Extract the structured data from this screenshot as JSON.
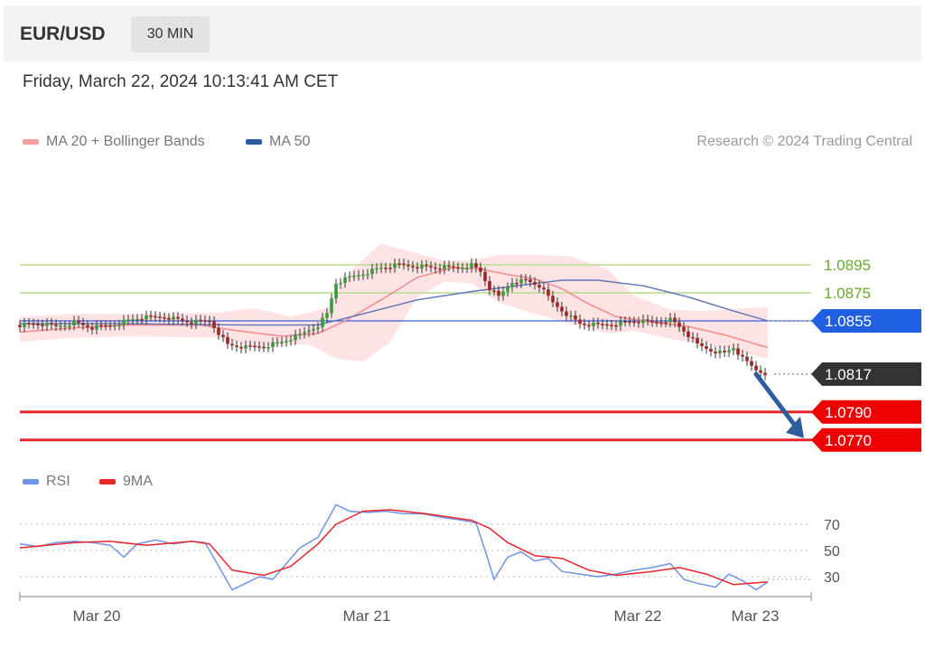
{
  "header": {
    "pair": "EUR/USD",
    "timeframe": "30 MIN",
    "timestamp": "Friday, March 22, 2024 10:13:41 AM CET"
  },
  "legend": {
    "ma20_label": "MA 20 + Bollinger Bands",
    "ma50_label": "MA 50",
    "credit": "Research © 2024 Trading Central",
    "rsi_label": "RSI",
    "rsi_ma_label": "9MA"
  },
  "colors": {
    "ma20": "#f28b8b",
    "bollinger_fill": "#fde0e0",
    "ma50": "#5d76b8",
    "support_line": "#e8262b",
    "resistance_line": "#b8dc8c",
    "pivot_line": "#3b5fd6",
    "candle_up": "#3a9b3a",
    "candle_down": "#a02525",
    "arrow": "#2d5d9e",
    "rsi": "#6f93e6",
    "rsi_ma": "#e8262b"
  },
  "chart_data": [
    {
      "type": "line",
      "instrument": "EUR/USD",
      "interval": "30 MIN",
      "price_range": [
        1.076,
        1.092
      ],
      "x_labels": [
        "Mar 20",
        "Mar 21",
        "Mar 22",
        "Mar 23"
      ],
      "price_path": [
        [
          0,
          1.0852
        ],
        [
          20,
          1.0853
        ],
        [
          40,
          1.0851
        ],
        [
          60,
          1.0854
        ],
        [
          80,
          1.085
        ],
        [
          100,
          1.0852
        ],
        [
          130,
          1.0857
        ],
        [
          160,
          1.0858
        ],
        [
          190,
          1.0854
        ],
        [
          210,
          1.0855
        ],
        [
          230,
          1.0838
        ],
        [
          250,
          1.0836
        ],
        [
          270,
          1.0837
        ],
        [
          290,
          1.084
        ],
        [
          310,
          1.0845
        ],
        [
          330,
          1.0852
        ],
        [
          340,
          1.086
        ],
        [
          350,
          1.0882
        ],
        [
          365,
          1.0886
        ],
        [
          385,
          1.089
        ],
        [
          400,
          1.0893
        ],
        [
          420,
          1.0895
        ],
        [
          440,
          1.0894
        ],
        [
          460,
          1.0893
        ],
        [
          485,
          1.0893
        ],
        [
          500,
          1.0895
        ],
        [
          510,
          1.089
        ],
        [
          520,
          1.0878
        ],
        [
          530,
          1.0872
        ],
        [
          545,
          1.0883
        ],
        [
          560,
          1.0884
        ],
        [
          575,
          1.088
        ],
        [
          590,
          1.0868
        ],
        [
          605,
          1.086
        ],
        [
          620,
          1.0853
        ],
        [
          640,
          1.0852
        ],
        [
          660,
          1.0853
        ],
        [
          680,
          1.0855
        ],
        [
          700,
          1.0854
        ],
        [
          720,
          1.0856
        ],
        [
          735,
          1.0848
        ],
        [
          750,
          1.0838
        ],
        [
          765,
          1.0834
        ],
        [
          780,
          1.0832
        ],
        [
          790,
          1.0836
        ],
        [
          800,
          1.0828
        ],
        [
          815,
          1.082
        ],
        [
          828,
          1.0817
        ]
      ],
      "ma20": [
        [
          0,
          1.0847
        ],
        [
          60,
          1.085
        ],
        [
          120,
          1.0852
        ],
        [
          200,
          1.0852
        ],
        [
          240,
          1.0848
        ],
        [
          290,
          1.0844
        ],
        [
          330,
          1.0846
        ],
        [
          360,
          1.0855
        ],
        [
          400,
          1.087
        ],
        [
          440,
          1.0886
        ],
        [
          480,
          1.0893
        ],
        [
          510,
          1.0892
        ],
        [
          540,
          1.0888
        ],
        [
          570,
          1.0885
        ],
        [
          600,
          1.0878
        ],
        [
          630,
          1.0867
        ],
        [
          660,
          1.0858
        ],
        [
          700,
          1.0854
        ],
        [
          740,
          1.0851
        ],
        [
          780,
          1.0845
        ],
        [
          828,
          1.0836
        ]
      ],
      "bollinger_upper": [
        [
          0,
          1.0858
        ],
        [
          60,
          1.086
        ],
        [
          120,
          1.086
        ],
        [
          220,
          1.0861
        ],
        [
          260,
          1.0864
        ],
        [
          300,
          1.0858
        ],
        [
          340,
          1.0864
        ],
        [
          370,
          1.0893
        ],
        [
          400,
          1.091
        ],
        [
          430,
          1.0905
        ],
        [
          470,
          1.0898
        ],
        [
          500,
          1.0898
        ],
        [
          530,
          1.0902
        ],
        [
          570,
          1.0902
        ],
        [
          610,
          1.0901
        ],
        [
          650,
          1.0892
        ],
        [
          680,
          1.0873
        ],
        [
          720,
          1.0863
        ],
        [
          760,
          1.0862
        ],
        [
          800,
          1.0864
        ],
        [
          828,
          1.0865
        ]
      ],
      "bollinger_lower": [
        [
          828,
          1.0828
        ],
        [
          800,
          1.0832
        ],
        [
          760,
          1.0838
        ],
        [
          720,
          1.0842
        ],
        [
          680,
          1.0848
        ],
        [
          650,
          1.0846
        ],
        [
          610,
          1.0853
        ],
        [
          570,
          1.086
        ],
        [
          530,
          1.0868
        ],
        [
          500,
          1.0882
        ],
        [
          470,
          1.0883
        ],
        [
          440,
          1.0872
        ],
        [
          410,
          1.084
        ],
        [
          380,
          1.0826
        ],
        [
          350,
          1.0828
        ],
        [
          320,
          1.0838
        ],
        [
          290,
          1.0838
        ],
        [
          260,
          1.0836
        ],
        [
          220,
          1.0843
        ],
        [
          120,
          1.0844
        ],
        [
          60,
          1.0843
        ],
        [
          0,
          1.084
        ]
      ],
      "ma50": [
        [
          0,
          1.0853
        ],
        [
          120,
          1.0853
        ],
        [
          250,
          1.0852
        ],
        [
          330,
          1.0852
        ],
        [
          380,
          1.086
        ],
        [
          440,
          1.087
        ],
        [
          500,
          1.0876
        ],
        [
          550,
          1.088
        ],
        [
          600,
          1.0884
        ],
        [
          640,
          1.0884
        ],
        [
          690,
          1.088
        ],
        [
          740,
          1.0872
        ],
        [
          790,
          1.0862
        ],
        [
          828,
          1.0855
        ]
      ],
      "levels": [
        {
          "kind": "resistance",
          "value": 1.0895,
          "label": "1.0895"
        },
        {
          "kind": "resistance",
          "value": 1.0875,
          "label": "1.0875"
        },
        {
          "kind": "pivot",
          "value": 1.0855,
          "label": "1.0855"
        },
        {
          "kind": "last_price",
          "value": 1.0817,
          "label": "1.0817"
        },
        {
          "kind": "support",
          "value": 1.079,
          "label": "1.0790"
        },
        {
          "kind": "support",
          "value": 1.077,
          "label": "1.0770"
        }
      ],
      "forecast": "down toward 1.0770"
    },
    {
      "type": "line",
      "name": "RSI",
      "y_ticks": [
        70,
        50,
        30
      ],
      "ylim": [
        10,
        100
      ],
      "rsi": [
        [
          0,
          55
        ],
        [
          20,
          53
        ],
        [
          40,
          56
        ],
        [
          60,
          57
        ],
        [
          80,
          56
        ],
        [
          100,
          54
        ],
        [
          115,
          45
        ],
        [
          130,
          55
        ],
        [
          150,
          58
        ],
        [
          170,
          55
        ],
        [
          190,
          57
        ],
        [
          205,
          56
        ],
        [
          220,
          38
        ],
        [
          235,
          20
        ],
        [
          250,
          25
        ],
        [
          265,
          30
        ],
        [
          280,
          28
        ],
        [
          295,
          40
        ],
        [
          310,
          52
        ],
        [
          330,
          60
        ],
        [
          350,
          85
        ],
        [
          365,
          80
        ],
        [
          385,
          79
        ],
        [
          405,
          80
        ],
        [
          425,
          78
        ],
        [
          445,
          78
        ],
        [
          470,
          75
        ],
        [
          490,
          73
        ],
        [
          505,
          71
        ],
        [
          515,
          50
        ],
        [
          525,
          28
        ],
        [
          540,
          45
        ],
        [
          555,
          49
        ],
        [
          570,
          42
        ],
        [
          585,
          44
        ],
        [
          600,
          34
        ],
        [
          620,
          32
        ],
        [
          640,
          30
        ],
        [
          660,
          32
        ],
        [
          680,
          35
        ],
        [
          700,
          37
        ],
        [
          720,
          40
        ],
        [
          735,
          28
        ],
        [
          750,
          25
        ],
        [
          770,
          22
        ],
        [
          785,
          32
        ],
        [
          800,
          27
        ],
        [
          815,
          20
        ],
        [
          828,
          26
        ]
      ],
      "rsi_ma": [
        [
          0,
          52
        ],
        [
          60,
          56
        ],
        [
          100,
          57
        ],
        [
          140,
          54
        ],
        [
          190,
          57
        ],
        [
          210,
          55
        ],
        [
          235,
          35
        ],
        [
          270,
          31
        ],
        [
          300,
          38
        ],
        [
          330,
          55
        ],
        [
          350,
          70
        ],
        [
          380,
          80
        ],
        [
          410,
          81
        ],
        [
          450,
          78
        ],
        [
          500,
          73
        ],
        [
          520,
          67
        ],
        [
          540,
          56
        ],
        [
          570,
          46
        ],
        [
          600,
          44
        ],
        [
          630,
          35
        ],
        [
          660,
          31
        ],
        [
          700,
          34
        ],
        [
          730,
          37
        ],
        [
          760,
          32
        ],
        [
          790,
          24
        ],
        [
          828,
          26
        ]
      ]
    }
  ]
}
